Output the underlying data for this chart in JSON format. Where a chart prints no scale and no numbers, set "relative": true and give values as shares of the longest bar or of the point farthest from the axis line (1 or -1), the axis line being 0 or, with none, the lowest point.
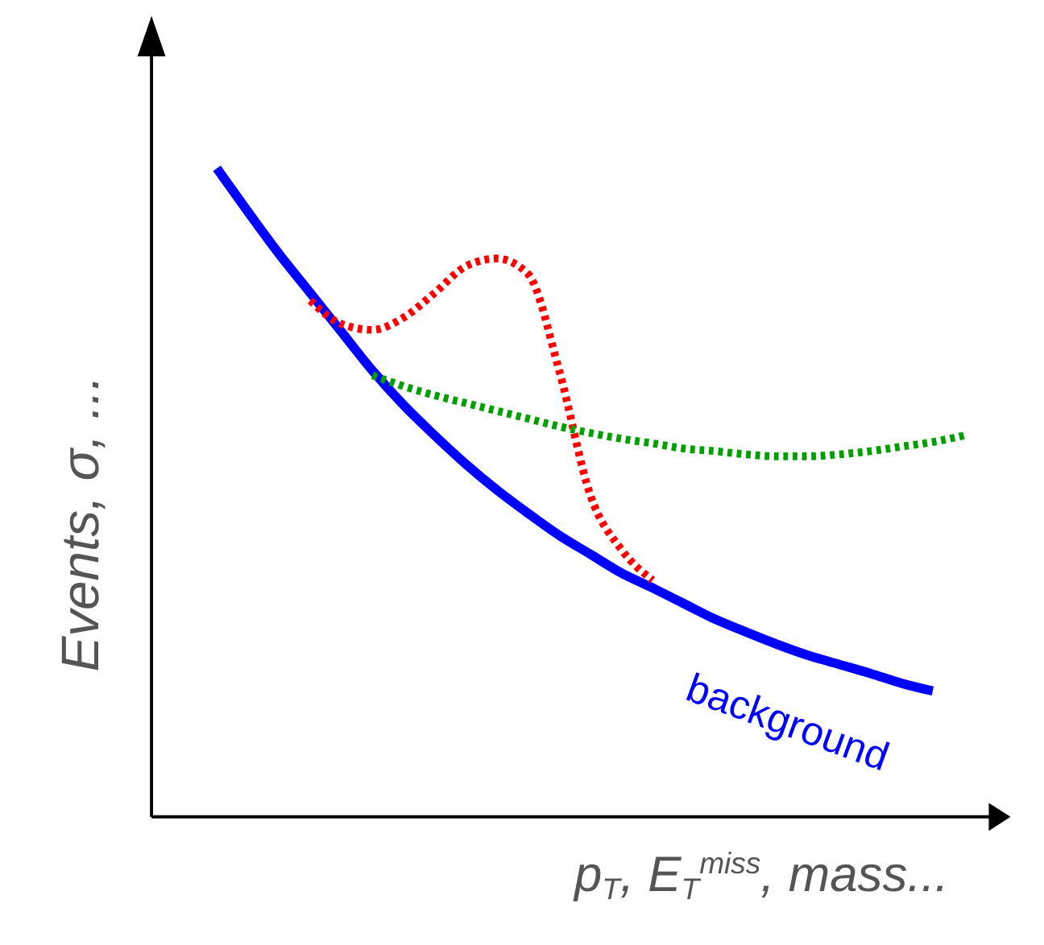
{
  "chart_data": {
    "type": "line",
    "relative": true,
    "xlabel": "p$_{T}$, E$_{T}$$^{miss}$, mass...",
    "ylabel": "Events, σ, ...",
    "categories": [
      null,
      null,
      null,
      null,
      null,
      null,
      null,
      null,
      null,
      null,
      null,
      null,
      null,
      null,
      null,
      null,
      null,
      null,
      null,
      null,
      null,
      null,
      null,
      null,
      null
    ],
    "series": [
      {
        "name": "background",
        "color": "#0000ff",
        "line_style": "solid",
        "values": [
          1,
          0.933,
          0.868,
          0.808,
          0.748,
          0.688,
          0.635,
          0.588,
          0.544,
          0.504,
          0.468,
          0.434,
          0.405,
          0.376,
          0.353,
          0.329,
          0.305,
          0.285,
          0.266,
          0.249,
          0.235,
          0.221,
          0.206,
          0.194,
          null
        ]
      },
      {
        "color": "#ff0000",
        "line_style": "dotted",
        "values": [
          null,
          null,
          null,
          0.796,
          0.76,
          0.751,
          0.77,
          0.808,
          0.849,
          0.861,
          0.837,
          0.688,
          0.496,
          0.412,
          0.365,
          null,
          null,
          null,
          null,
          null,
          null,
          null,
          null,
          null,
          null
        ]
      },
      {
        "color": "#00a000",
        "line_style": "dotted",
        "values": [
          null,
          null,
          null,
          null,
          null,
          0.681,
          0.664,
          0.65,
          0.638,
          0.626,
          0.614,
          0.602,
          0.592,
          0.583,
          0.576,
          0.568,
          0.564,
          0.559,
          0.556,
          0.556,
          0.559,
          0.564,
          0.571,
          0.578,
          0.588
        ]
      }
    ]
  }
}
